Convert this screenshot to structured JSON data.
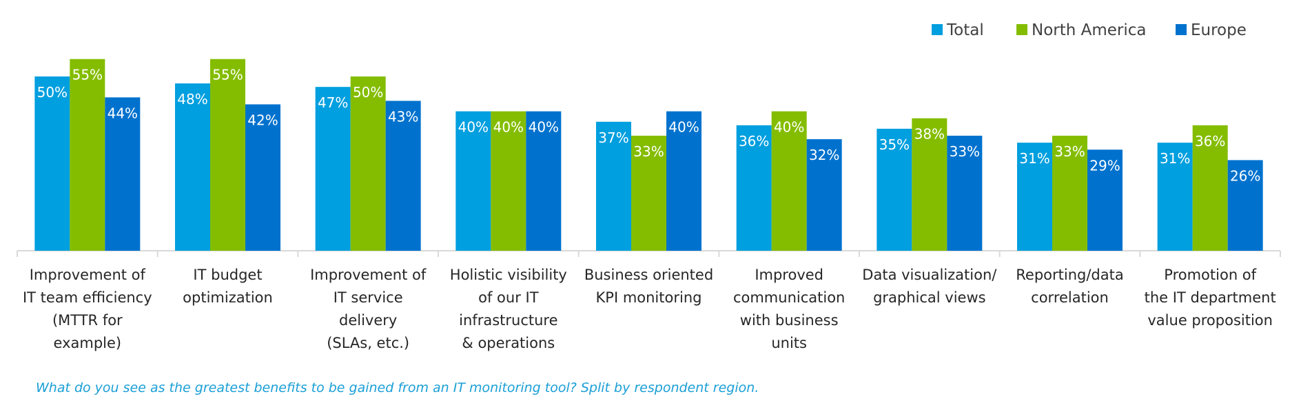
{
  "chart_data": {
    "type": "bar",
    "categories": [
      [
        "Improvement of",
        "IT team efficiency",
        "(MTTR for",
        "example)"
      ],
      [
        "IT budget",
        "optimization"
      ],
      [
        "Improvement of",
        "IT service",
        "delivery",
        "(SLAs, etc.)"
      ],
      [
        "Holistic visibility",
        "of our IT",
        "infrastructure",
        "& operations"
      ],
      [
        "Business oriented",
        "KPI monitoring"
      ],
      [
        "Improved",
        "communication",
        "with business",
        "units"
      ],
      [
        "Data visualization/",
        "graphical views"
      ],
      [
        "Reporting/data",
        "correlation"
      ],
      [
        "Promotion of",
        "the IT department",
        "value proposition"
      ]
    ],
    "series": [
      {
        "name": "Total",
        "color": "#009fdf",
        "values": [
          50,
          48,
          47,
          40,
          37,
          36,
          35,
          31,
          31
        ]
      },
      {
        "name": "North America",
        "color": "#84bd00",
        "values": [
          55,
          55,
          50,
          40,
          33,
          40,
          38,
          33,
          36
        ]
      },
      {
        "name": "Europe",
        "color": "#0072ce",
        "values": [
          44,
          42,
          43,
          40,
          40,
          32,
          33,
          29,
          26
        ]
      }
    ],
    "value_suffix": "%",
    "ylim": [
      0,
      60
    ],
    "grid": false,
    "legend": "top-right",
    "title": "",
    "xlabel": "",
    "ylabel": ""
  },
  "footnote": "What do you see as the greatest benefits to be gained from an IT monitoring tool? Split by respondent region."
}
